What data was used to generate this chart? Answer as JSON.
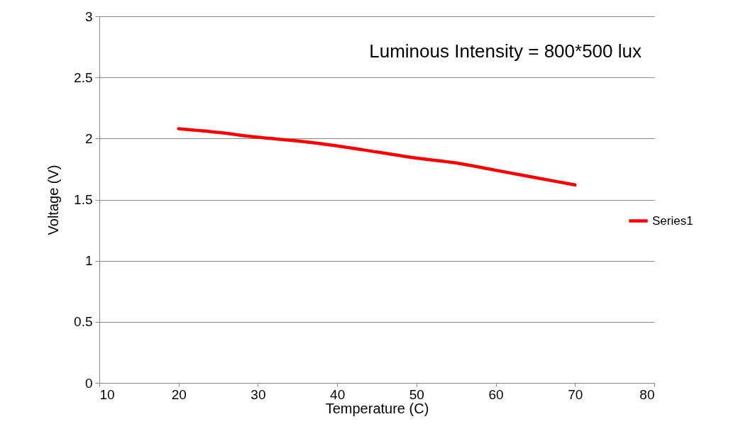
{
  "chart_data": {
    "type": "line",
    "title": "Luminous Intensity = 800*500 lux",
    "xlabel": "Temperature (C)",
    "ylabel": "Voltage (V)",
    "x": [
      20,
      25,
      30,
      35,
      40,
      45,
      50,
      55,
      60,
      65,
      70
    ],
    "series": [
      {
        "name": "Series1",
        "color": "#ff0000",
        "values": [
          2.08,
          2.05,
          2.01,
          1.98,
          1.94,
          1.89,
          1.84,
          1.8,
          1.74,
          1.68,
          1.62
        ]
      }
    ],
    "xlim": [
      10,
      80
    ],
    "xticks": [
      10,
      20,
      30,
      40,
      50,
      60,
      70,
      80
    ],
    "ylim": [
      0,
      3
    ],
    "yticks": [
      {
        "value": 0,
        "label": "0"
      },
      0.5,
      {
        "value": 1,
        "label": "1"
      },
      1.5,
      {
        "value": 2,
        "label": "2"
      },
      2.5,
      {
        "value": 3,
        "label": "3"
      }
    ],
    "grid": "y",
    "legend": "right",
    "marker": "none",
    "line_style": "solid"
  }
}
